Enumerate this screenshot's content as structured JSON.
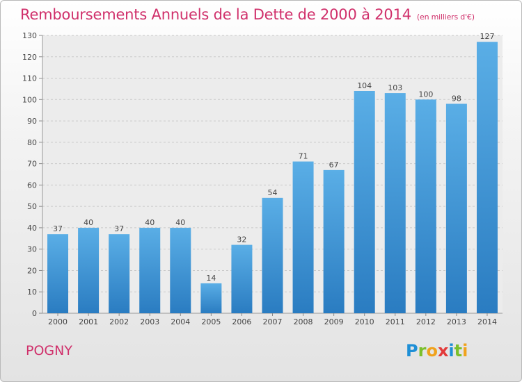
{
  "header": {
    "title": "Remboursements Annuels de la Dette de 2000 à 2014",
    "subtitle": "(en milliers d'€)"
  },
  "footer": {
    "commune": "POGNY",
    "logo_letters": [
      "P",
      "r",
      "o",
      "x",
      "i",
      "t",
      "i"
    ],
    "logo_colors": [
      "#1e8fd6",
      "#7bbf2b",
      "#f0a21c",
      "#e23a3a",
      "#1e8fd6",
      "#7bbf2b",
      "#f0a21c"
    ]
  },
  "colors": {
    "bar": "#3d95d6",
    "bar_dark": "#2a7cc1",
    "grid": "#c9c9c9",
    "text": "#444444",
    "accent": "#d0306b"
  },
  "chart_data": {
    "type": "bar",
    "title": "Remboursements Annuels de la Dette de 2000 à 2014",
    "xlabel": "",
    "ylabel": "",
    "categories": [
      "2000",
      "2001",
      "2002",
      "2003",
      "2004",
      "2005",
      "2006",
      "2007",
      "2008",
      "2009",
      "2010",
      "2011",
      "2012",
      "2013",
      "2014"
    ],
    "values": [
      37,
      40,
      37,
      40,
      40,
      14,
      32,
      54,
      71,
      67,
      104,
      103,
      100,
      98,
      127
    ],
    "ylim": [
      0,
      130
    ],
    "yticks": [
      0,
      10,
      20,
      30,
      40,
      50,
      60,
      70,
      80,
      90,
      100,
      110,
      120,
      130
    ],
    "grid": true,
    "data_labels": true
  }
}
